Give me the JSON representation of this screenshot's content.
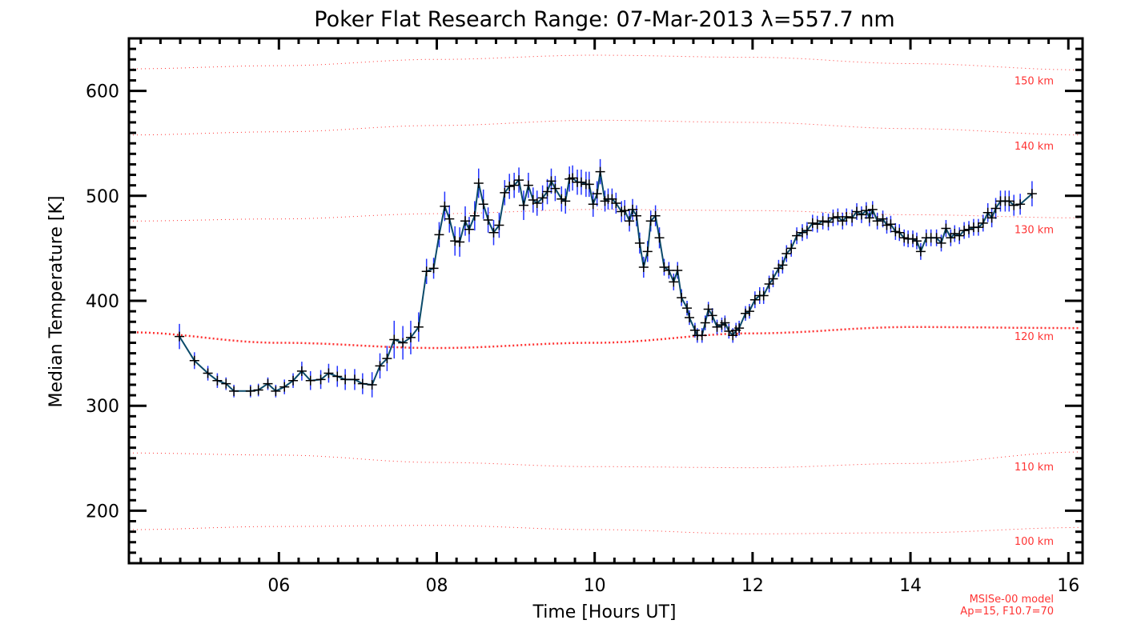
{
  "chart_data": {
    "type": "line",
    "title": "Poker Flat Research Range: 07-Mar-2013 λ=557.7 nm",
    "xlabel": "Time [Hours UT]",
    "ylabel": "Median Temperature [K]",
    "xlim": [
      4.1,
      16.18
    ],
    "ylim": [
      150,
      650
    ],
    "x_ticks": [
      6,
      8,
      10,
      12,
      14,
      16
    ],
    "x_tick_labels": [
      "06",
      "08",
      "10",
      "12",
      "14",
      "16"
    ],
    "y_ticks": [
      200,
      300,
      400,
      500,
      600
    ],
    "y_tick_labels": [
      "200",
      "300",
      "400",
      "500",
      "600"
    ],
    "grid": false,
    "series": [
      {
        "name": "Median temperature",
        "line_color": "#0b4a6a",
        "errorbar_color": "#2233ff",
        "marker": "plus",
        "points": [
          [
            4.74,
            366,
            12
          ],
          [
            4.93,
            343,
            8
          ],
          [
            5.1,
            331,
            7
          ],
          [
            5.22,
            324,
            7
          ],
          [
            5.33,
            321,
            6
          ],
          [
            5.43,
            314,
            6
          ],
          [
            5.64,
            314,
            6
          ],
          [
            5.74,
            315,
            6
          ],
          [
            5.86,
            321,
            6
          ],
          [
            5.96,
            314,
            6
          ],
          [
            6.07,
            318,
            7
          ],
          [
            6.18,
            324,
            7
          ],
          [
            6.29,
            333,
            9
          ],
          [
            6.4,
            324,
            9
          ],
          [
            6.53,
            325,
            9
          ],
          [
            6.63,
            331,
            9
          ],
          [
            6.74,
            328,
            10
          ],
          [
            6.84,
            325,
            10
          ],
          [
            6.96,
            325,
            10
          ],
          [
            7.06,
            321,
            10
          ],
          [
            7.18,
            320,
            12
          ],
          [
            7.28,
            338,
            12
          ],
          [
            7.37,
            345,
            12
          ],
          [
            7.46,
            363,
            18
          ],
          [
            7.57,
            360,
            16
          ],
          [
            7.67,
            365,
            16
          ],
          [
            7.77,
            375,
            14
          ],
          [
            7.87,
            428,
            12
          ],
          [
            7.96,
            431,
            10
          ],
          [
            8.03,
            463,
            12
          ],
          [
            8.1,
            490,
            14
          ],
          [
            8.16,
            478,
            13
          ],
          [
            8.23,
            457,
            14
          ],
          [
            8.29,
            456,
            14
          ],
          [
            8.36,
            476,
            14
          ],
          [
            8.41,
            468,
            12
          ],
          [
            8.48,
            481,
            14
          ],
          [
            8.53,
            512,
            14
          ],
          [
            8.59,
            492,
            14
          ],
          [
            8.65,
            477,
            12
          ],
          [
            8.72,
            465,
            12
          ],
          [
            8.79,
            472,
            12
          ],
          [
            8.86,
            503,
            12
          ],
          [
            8.92,
            509,
            12
          ],
          [
            8.98,
            510,
            12
          ],
          [
            9.04,
            515,
            12
          ],
          [
            9.1,
            491,
            14
          ],
          [
            9.16,
            510,
            12
          ],
          [
            9.22,
            496,
            12
          ],
          [
            9.27,
            493,
            12
          ],
          [
            9.34,
            498,
            12
          ],
          [
            9.4,
            504,
            12
          ],
          [
            9.45,
            514,
            12
          ],
          [
            9.5,
            507,
            12
          ],
          [
            9.58,
            497,
            12
          ],
          [
            9.63,
            495,
            12
          ],
          [
            9.68,
            516,
            12
          ],
          [
            9.72,
            517,
            12
          ],
          [
            9.78,
            513,
            12
          ],
          [
            9.83,
            513,
            12
          ],
          [
            9.89,
            511,
            12
          ],
          [
            9.93,
            511,
            12
          ],
          [
            9.98,
            492,
            12
          ],
          [
            10.03,
            502,
            12
          ],
          [
            10.07,
            523,
            12
          ],
          [
            10.13,
            495,
            10
          ],
          [
            10.17,
            497,
            10
          ],
          [
            10.22,
            497,
            10
          ],
          [
            10.27,
            493,
            10
          ],
          [
            10.34,
            485,
            10
          ],
          [
            10.38,
            486,
            10
          ],
          [
            10.44,
            476,
            10
          ],
          [
            10.48,
            487,
            10
          ],
          [
            10.53,
            481,
            10
          ],
          [
            10.57,
            455,
            10
          ],
          [
            10.62,
            432,
            10
          ],
          [
            10.67,
            447,
            10
          ],
          [
            10.71,
            476,
            10
          ],
          [
            10.77,
            481,
            10
          ],
          [
            10.82,
            460,
            10
          ],
          [
            10.88,
            432,
            8
          ],
          [
            10.94,
            429,
            8
          ],
          [
            11.0,
            418,
            8
          ],
          [
            11.05,
            429,
            8
          ],
          [
            11.1,
            403,
            8
          ],
          [
            11.17,
            393,
            7
          ],
          [
            11.2,
            384,
            7
          ],
          [
            11.27,
            372,
            7
          ],
          [
            11.3,
            367,
            7
          ],
          [
            11.36,
            367,
            7
          ],
          [
            11.4,
            379,
            7
          ],
          [
            11.44,
            392,
            7
          ],
          [
            11.49,
            386,
            7
          ],
          [
            11.55,
            375,
            7
          ],
          [
            11.61,
            377,
            7
          ],
          [
            11.65,
            379,
            7
          ],
          [
            11.7,
            371,
            7
          ],
          [
            11.75,
            367,
            7
          ],
          [
            11.79,
            372,
            7
          ],
          [
            11.83,
            374,
            7
          ],
          [
            11.91,
            388,
            7
          ],
          [
            11.96,
            390,
            7
          ],
          [
            12.03,
            401,
            8
          ],
          [
            12.09,
            405,
            8
          ],
          [
            12.14,
            405,
            8
          ],
          [
            12.21,
            416,
            8
          ],
          [
            12.26,
            421,
            8
          ],
          [
            12.33,
            431,
            8
          ],
          [
            12.38,
            434,
            8
          ],
          [
            12.43,
            445,
            8
          ],
          [
            12.49,
            450,
            8
          ],
          [
            12.56,
            462,
            8
          ],
          [
            12.63,
            465,
            8
          ],
          [
            12.69,
            467,
            8
          ],
          [
            12.76,
            474,
            8
          ],
          [
            12.82,
            473,
            8
          ],
          [
            12.89,
            476,
            8
          ],
          [
            12.96,
            475,
            8
          ],
          [
            13.02,
            479,
            8
          ],
          [
            13.08,
            480,
            8
          ],
          [
            13.14,
            476,
            8
          ],
          [
            13.19,
            480,
            8
          ],
          [
            13.26,
            479,
            8
          ],
          [
            13.32,
            485,
            8
          ],
          [
            13.38,
            482,
            8
          ],
          [
            13.44,
            486,
            8
          ],
          [
            13.48,
            479,
            8
          ],
          [
            13.52,
            487,
            8
          ],
          [
            13.58,
            476,
            8
          ],
          [
            13.65,
            478,
            8
          ],
          [
            13.7,
            472,
            8
          ],
          [
            13.75,
            473,
            8
          ],
          [
            13.81,
            466,
            8
          ],
          [
            13.86,
            465,
            8
          ],
          [
            13.92,
            460,
            8
          ],
          [
            13.97,
            459,
            8
          ],
          [
            14.03,
            459,
            8
          ],
          [
            14.08,
            457,
            8
          ],
          [
            14.13,
            447,
            8
          ],
          [
            14.2,
            460,
            8
          ],
          [
            14.26,
            460,
            8
          ],
          [
            14.33,
            460,
            8
          ],
          [
            14.39,
            455,
            8
          ],
          [
            14.45,
            469,
            8
          ],
          [
            14.51,
            460,
            8
          ],
          [
            14.56,
            464,
            8
          ],
          [
            14.62,
            462,
            8
          ],
          [
            14.68,
            467,
            8
          ],
          [
            14.74,
            468,
            8
          ],
          [
            14.8,
            470,
            8
          ],
          [
            14.86,
            470,
            8
          ],
          [
            14.92,
            474,
            8
          ],
          [
            14.98,
            484,
            9
          ],
          [
            15.03,
            479,
            9
          ],
          [
            15.08,
            488,
            10
          ],
          [
            15.14,
            495,
            10
          ],
          [
            15.2,
            495,
            10
          ],
          [
            15.25,
            495,
            10
          ],
          [
            15.31,
            491,
            10
          ],
          [
            15.39,
            492,
            10
          ],
          [
            15.54,
            502,
            12
          ]
        ]
      }
    ],
    "model_curves": {
      "color": "#ff3333",
      "x": [
        4.1,
        6,
        8,
        10,
        12,
        14,
        16.18
      ],
      "curves": [
        {
          "label": "150 km",
          "values": [
            621,
            624,
            630,
            634,
            632,
            626,
            620
          ]
        },
        {
          "label": "140 km",
          "values": [
            558,
            561,
            567,
            572,
            570,
            564,
            558
          ]
        },
        {
          "label": "130 km",
          "values": [
            476,
            478,
            483,
            487,
            486,
            482,
            479
          ]
        },
        {
          "label": "120 km",
          "values": [
            370,
            360,
            355,
            360,
            369,
            375,
            374
          ]
        },
        {
          "label": "110 km",
          "values": [
            255,
            253,
            246,
            242,
            241,
            245,
            256
          ]
        },
        {
          "label": "100 km",
          "values": [
            182,
            185,
            186,
            182,
            178,
            179,
            184
          ]
        }
      ]
    },
    "annotation": [
      "MSISe-00 model",
      "Ap=15, F10.7=70"
    ]
  }
}
